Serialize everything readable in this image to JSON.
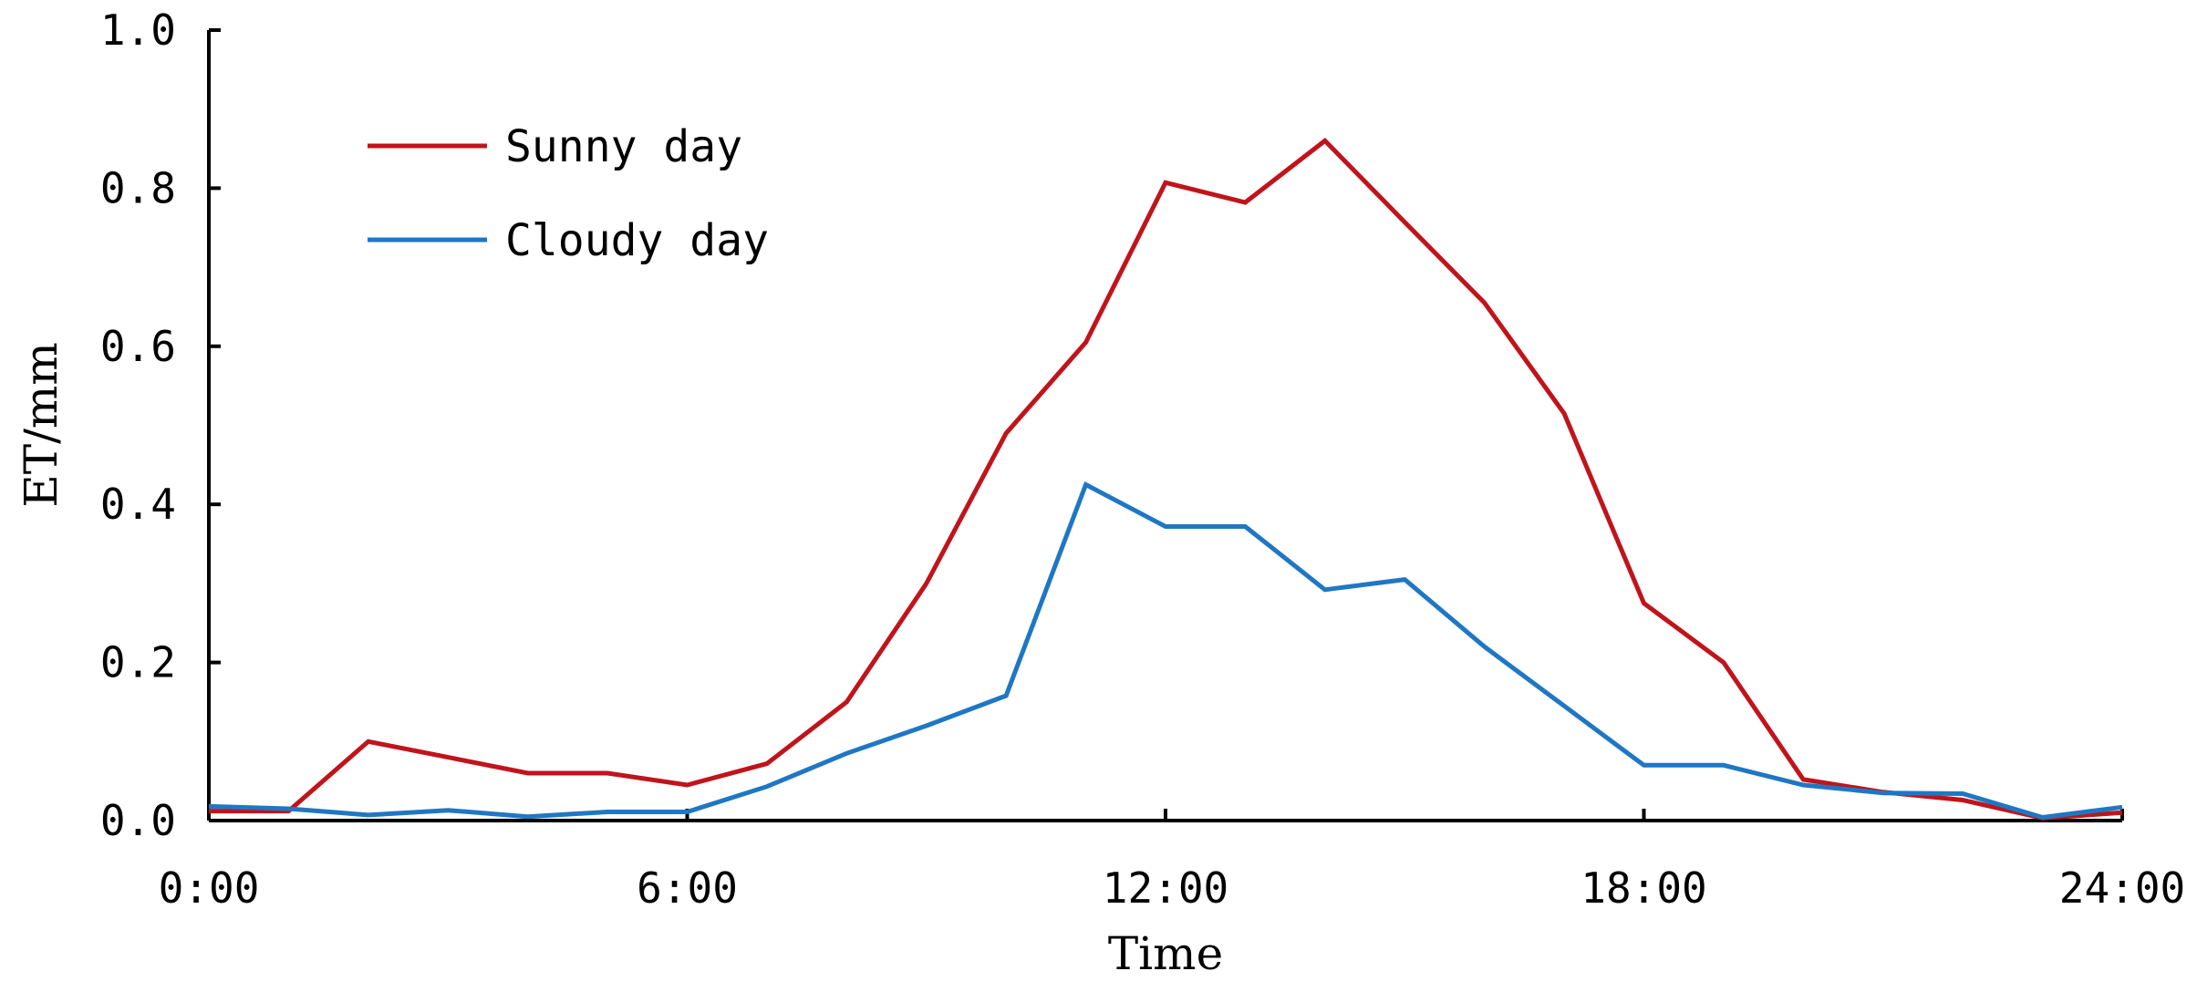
{
  "chart_data": {
    "type": "line",
    "title": "",
    "xlabel": "Time",
    "ylabel": "ET/mm",
    "xlim": [
      0,
      24
    ],
    "ylim": [
      0,
      1.0
    ],
    "x_ticks": [
      0,
      6,
      12,
      18,
      24
    ],
    "x_tick_labels": [
      "0:00",
      "6:00",
      "12:00",
      "18:00",
      "24:00"
    ],
    "y_ticks": [
      0,
      0.2,
      0.4,
      0.6,
      0.8,
      1.0
    ],
    "y_tick_labels": [
      "0.0",
      "0.2",
      "0.4",
      "0.6",
      "0.8",
      "1.0"
    ],
    "grid": false,
    "legend_position": "top-left",
    "x": [
      0,
      1,
      2,
      3,
      4,
      5,
      6,
      7,
      8,
      9,
      10,
      11,
      12,
      13,
      14,
      15,
      16,
      17,
      18,
      19,
      20,
      21,
      22,
      23,
      24
    ],
    "series": [
      {
        "name": "Sunny day",
        "color": "#c0141c",
        "values": [
          0.012,
          0.012,
          0.1,
          0.08,
          0.06,
          0.06,
          0.045,
          0.072,
          0.15,
          0.3,
          0.49,
          0.605,
          0.807,
          0.782,
          0.86,
          0.757,
          0.655,
          0.515,
          0.275,
          0.2,
          0.052,
          0.036,
          0.026,
          0.003,
          0.01
        ]
      },
      {
        "name": "Cloudy day",
        "color": "#1f77c4",
        "values": [
          0.018,
          0.015,
          0.007,
          0.013,
          0.005,
          0.011,
          0.011,
          0.043,
          0.085,
          0.12,
          0.158,
          0.425,
          0.372,
          0.372,
          0.292,
          0.305,
          0.22,
          0.145,
          0.07,
          0.07,
          0.045,
          0.035,
          0.034,
          0.004,
          0.017
        ]
      }
    ]
  }
}
